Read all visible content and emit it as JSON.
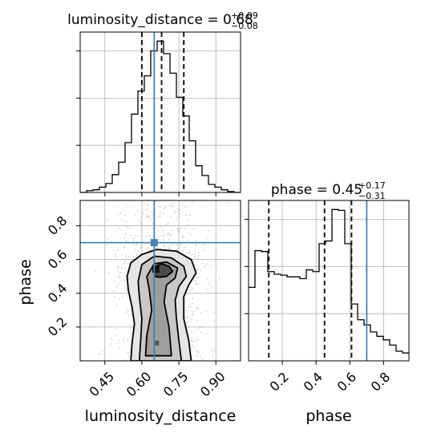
{
  "figure": {
    "colors": {
      "histogram": "#000000",
      "truth": "#4682b4",
      "grid": "#b0b0b0",
      "scatter": "#9a9a9a",
      "contour_line": "#000000"
    }
  },
  "chart_data": [
    {
      "panel": "luminosity_distance-marginal",
      "type": "histogram",
      "title_parts": {
        "name": "luminosity_distance",
        "value": "0.68",
        "upper": "+0.09",
        "lower": "−0.08"
      },
      "xlim": [
        0.35,
        1.0
      ],
      "bin_edges": [
        0.35,
        0.376,
        0.402,
        0.428,
        0.454,
        0.48,
        0.506,
        0.532,
        0.558,
        0.584,
        0.61,
        0.636,
        0.662,
        0.688,
        0.714,
        0.74,
        0.766,
        0.792,
        0.818,
        0.844,
        0.87,
        0.896,
        0.922,
        0.948,
        0.974,
        1.0
      ],
      "counts": [
        0,
        2,
        3,
        6,
        10,
        20,
        34,
        56,
        88,
        114,
        131,
        159,
        170,
        156,
        134,
        107,
        86,
        58,
        30,
        19,
        9,
        6,
        3,
        1,
        0
      ],
      "quantiles": [
        0.6,
        0.68,
        0.77
      ],
      "truth": 0.65,
      "grid": true
    },
    {
      "panel": "phase-marginal",
      "type": "histogram",
      "title_parts": {
        "name": "phase",
        "value": "0.45",
        "upper": "+0.17",
        "lower": "−0.31"
      },
      "xlim": [
        0.0,
        0.95
      ],
      "bin_edges": [
        0.0,
        0.038,
        0.076,
        0.114,
        0.152,
        0.19,
        0.228,
        0.266,
        0.304,
        0.342,
        0.38,
        0.418,
        0.456,
        0.494,
        0.532,
        0.57,
        0.608,
        0.646,
        0.684,
        0.722,
        0.76,
        0.798,
        0.836,
        0.874,
        0.912,
        0.95
      ],
      "counts": [
        84,
        126,
        125,
        102,
        99,
        98,
        96,
        96,
        94,
        104,
        102,
        134,
        137,
        173,
        172,
        134,
        65,
        47,
        41,
        33,
        28,
        24,
        18,
        11,
        9
      ],
      "quantiles": [
        0.12,
        0.45,
        0.61
      ],
      "truth": 0.7,
      "grid": true
    },
    {
      "panel": "2d-posterior",
      "type": "scatter",
      "xlabel": "luminosity_distance",
      "ylabel": "phase",
      "xlim": [
        0.35,
        1.0
      ],
      "ylim": [
        0.0,
        0.95
      ],
      "xticks": [
        "0.45",
        "0.60",
        "0.75",
        "0.90"
      ],
      "yticks": [
        "0.2",
        "0.4",
        "0.6",
        "0.8"
      ],
      "x_tick_values": [
        0.45,
        0.6,
        0.75,
        0.9
      ],
      "y_tick_values": [
        0.2,
        0.4,
        0.6,
        0.8
      ],
      "truth": {
        "x": 0.65,
        "y": 0.7
      },
      "density_peaks": [
        {
          "x": 0.68,
          "y": 0.53
        },
        {
          "x": 0.66,
          "y": 0.1
        }
      ],
      "grid": true
    },
    {
      "panel": "phase-axis",
      "type": "histogram",
      "xlabel": "phase",
      "xticks": [
        "0.2",
        "0.4",
        "0.6",
        "0.8"
      ],
      "x_tick_values": [
        0.2,
        0.4,
        0.6,
        0.8
      ]
    }
  ]
}
